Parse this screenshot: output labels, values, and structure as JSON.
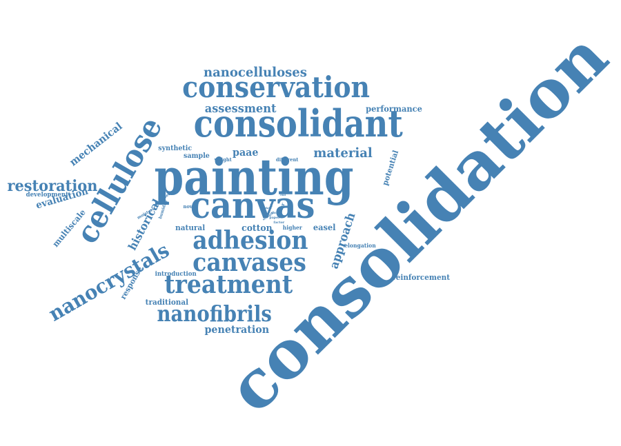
{
  "color": "#4682b4",
  "words": [
    {
      "id": "consolidation",
      "text": "consolidation"
    },
    {
      "id": "painting",
      "text": "painting"
    },
    {
      "id": "consolidant",
      "text": "consolidant"
    },
    {
      "id": "canvas",
      "text": "canvas"
    },
    {
      "id": "conservation",
      "text": "conservation"
    },
    {
      "id": "cellulose",
      "text": "cellulose"
    },
    {
      "id": "adhesion",
      "text": "adhesion"
    },
    {
      "id": "canvases",
      "text": "canvases"
    },
    {
      "id": "treatment",
      "text": "treatment"
    },
    {
      "id": "nanocrystals",
      "text": "nanocrystals"
    },
    {
      "id": "nanofibrils",
      "text": "nanofibrils"
    },
    {
      "id": "nanocelluloses",
      "text": "nanocelluloses"
    },
    {
      "id": "restoration",
      "text": "restoration"
    },
    {
      "id": "assessment",
      "text": "assessment"
    },
    {
      "id": "material",
      "text": "material"
    },
    {
      "id": "approach",
      "text": "approach"
    },
    {
      "id": "penetration",
      "text": "penetration"
    },
    {
      "id": "mechanical",
      "text": "mechanical"
    },
    {
      "id": "evaluation",
      "text": "evaluation"
    },
    {
      "id": "historical",
      "text": "historical"
    },
    {
      "id": "multiscale",
      "text": "multiscale"
    },
    {
      "id": "performance",
      "text": "performance"
    },
    {
      "id": "paae",
      "text": "paae"
    },
    {
      "id": "cotton",
      "text": "cotton"
    },
    {
      "id": "easel",
      "text": "easel"
    },
    {
      "id": "natural",
      "text": "natural"
    },
    {
      "id": "potential",
      "text": "potential"
    },
    {
      "id": "response",
      "text": "response"
    },
    {
      "id": "traditional",
      "text": "traditional"
    },
    {
      "id": "reinforcement",
      "text": "reinforcement"
    },
    {
      "id": "synthetic",
      "text": "synthetic"
    },
    {
      "id": "sample",
      "text": "sample"
    },
    {
      "id": "development",
      "text": "development"
    },
    {
      "id": "introduction",
      "text": "introduction"
    },
    {
      "id": "elongation",
      "text": "elongation"
    },
    {
      "id": "different",
      "text": "different"
    },
    {
      "id": "weight",
      "text": "weight"
    },
    {
      "id": "moisture",
      "text": "moisture"
    },
    {
      "id": "higher",
      "text": "higher"
    },
    {
      "id": "novel",
      "text": "novel"
    },
    {
      "id": "water",
      "text": "water"
    },
    {
      "id": "humidity",
      "text": "humidity"
    },
    {
      "id": "based",
      "text": "based"
    },
    {
      "id": "paper",
      "text": "paper"
    },
    {
      "id": "factor",
      "text": "factor"
    },
    {
      "id": "show",
      "text": "show"
    },
    {
      "id": "strength",
      "text": "strength"
    },
    {
      "id": "glue",
      "text": "glue"
    },
    {
      "id": "end",
      "text": "end"
    },
    {
      "id": "data",
      "text": "data"
    }
  ]
}
